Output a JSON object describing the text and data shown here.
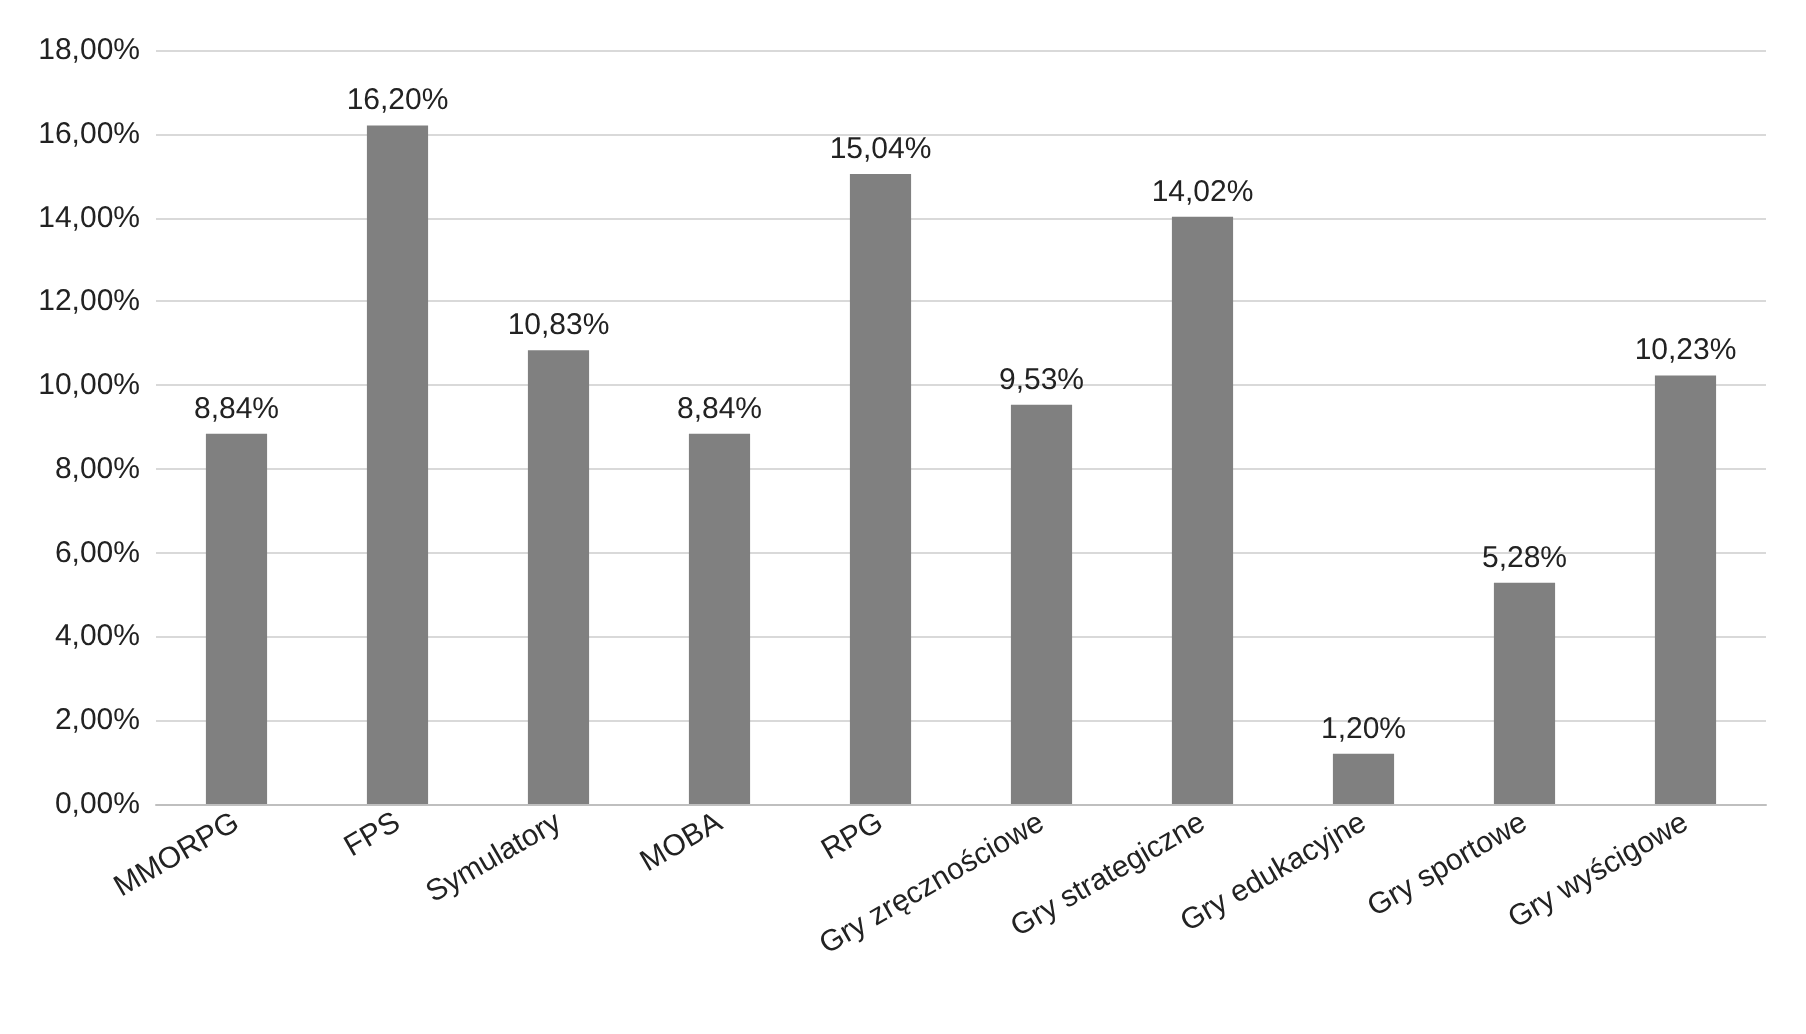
{
  "chart_data": {
    "type": "bar",
    "categories": [
      "MMORPG",
      "FPS",
      "Symulatory",
      "MOBA",
      "RPG",
      "Gry zręcznościowe",
      "Gry strategiczne",
      "Gry edukacyjne",
      "Gry sportowe",
      "Gry wyścigowe"
    ],
    "values": [
      8.84,
      16.2,
      10.83,
      8.84,
      15.04,
      9.53,
      14.02,
      1.2,
      5.28,
      10.23
    ],
    "value_labels": [
      "8,84%",
      "16,20%",
      "10,83%",
      "8,84%",
      "15,04%",
      "9,53%",
      "14,02%",
      "1,20%",
      "5,28%",
      "10,23%"
    ],
    "color": "#808080",
    "ylim": [
      0,
      18
    ],
    "yticks": [
      {
        "value": 0,
        "label": "0,00%"
      },
      {
        "value": 2,
        "label": "2,00%"
      },
      {
        "value": 4,
        "label": "4,00%"
      },
      {
        "value": 6,
        "label": "6,00%"
      },
      {
        "value": 8,
        "label": "8,00%"
      },
      {
        "value": 10,
        "label": "10,00%"
      },
      {
        "value": 12,
        "label": "12,00%"
      },
      {
        "value": 14,
        "label": "14,00%"
      },
      {
        "value": 16,
        "label": "16,00%"
      },
      {
        "value": 18,
        "label": "18,00%"
      }
    ],
    "grid": "y"
  }
}
